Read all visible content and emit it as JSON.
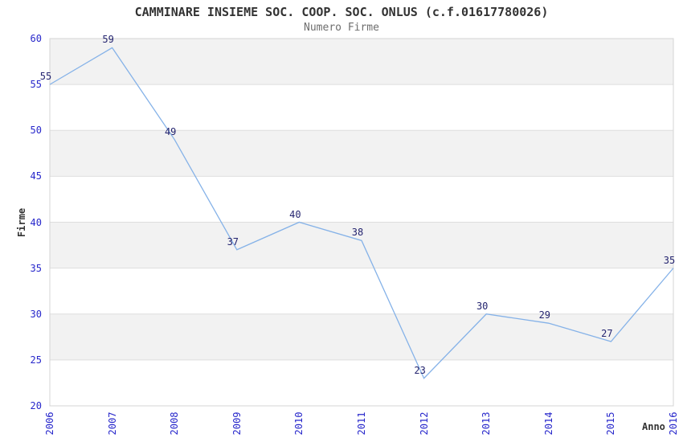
{
  "header": {
    "title": "CAMMINARE INSIEME SOC. COOP. SOC. ONLUS (c.f.01617780026)",
    "subtitle": "Numero Firme"
  },
  "chart_data": {
    "type": "line",
    "title": "CAMMINARE INSIEME SOC. COOP. SOC. ONLUS (c.f.01617780026)",
    "subtitle": "Numero Firme",
    "x": [
      2006,
      2007,
      2008,
      2009,
      2010,
      2011,
      2012,
      2013,
      2014,
      2015,
      2016
    ],
    "values": [
      55,
      59,
      49,
      37,
      40,
      38,
      23,
      30,
      29,
      27,
      35
    ],
    "xlabel": "Anno",
    "ylabel": "Firme",
    "ylim": [
      20,
      60
    ],
    "ytick_step": 5,
    "yticks": [
      20,
      25,
      30,
      35,
      40,
      45,
      50,
      55,
      60
    ],
    "grid": true,
    "band_fill": true,
    "legend": "none",
    "data_labels_shown": true
  },
  "colors": {
    "line": "#85b2e8",
    "tick_label": "#2727cb",
    "data_label": "#24246f",
    "band": "#f2f2f2",
    "gridline": "#dedede",
    "plot_border": "#d4d4d4",
    "title": "#333333",
    "subtitle": "#6e6e6e",
    "axis_label": "#333333",
    "background": "#ffffff"
  }
}
